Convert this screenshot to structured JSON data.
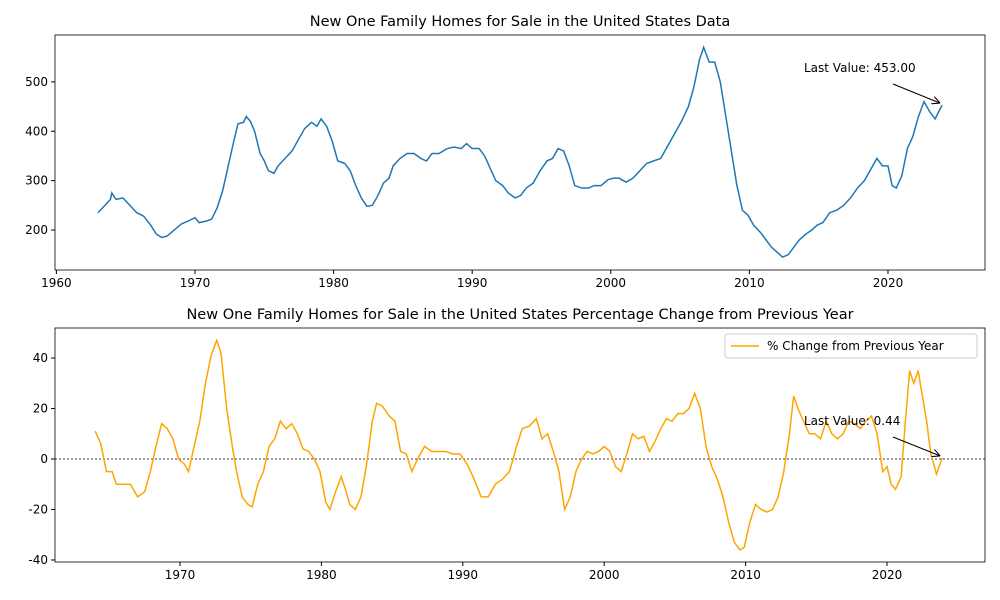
{
  "chart_data": [
    {
      "type": "line",
      "title": "New One Family Homes for Sale in the United States Data",
      "color": "#1f77b4",
      "x": [
        1963.0,
        1963.5,
        1963.9,
        1964.0,
        1964.3,
        1964.8,
        1965.3,
        1965.8,
        1966.3,
        1966.8,
        1967.2,
        1967.6,
        1968.0,
        1968.5,
        1969.0,
        1969.5,
        1970.0,
        1970.3,
        1970.8,
        1971.2,
        1971.6,
        1972.0,
        1972.4,
        1972.8,
        1973.1,
        1973.5,
        1973.7,
        1974.0,
        1974.3,
        1974.7,
        1975.0,
        1975.3,
        1975.7,
        1976.0,
        1976.5,
        1977.0,
        1977.5,
        1977.9,
        1978.4,
        1978.8,
        1979.1,
        1979.5,
        1979.9,
        1980.3,
        1980.8,
        1981.2,
        1981.6,
        1982.0,
        1982.4,
        1982.8,
        1983.2,
        1983.6,
        1984.0,
        1984.3,
        1984.8,
        1985.3,
        1985.8,
        1986.3,
        1986.7,
        1987.1,
        1987.6,
        1988.2,
        1988.7,
        1989.2,
        1989.6,
        1990.0,
        1990.5,
        1990.9,
        1991.3,
        1991.7,
        1992.2,
        1992.6,
        1993.1,
        1993.5,
        1993.9,
        1994.4,
        1994.9,
        1995.4,
        1995.8,
        1996.2,
        1996.6,
        1997.0,
        1997.4,
        1997.9,
        1998.4,
        1998.8,
        1999.3,
        1999.8,
        2000.2,
        2000.6,
        2001.1,
        2001.6,
        2002.1,
        2002.6,
        2003.1,
        2003.6,
        2004.1,
        2004.6,
        2005.1,
        2005.6,
        2006.0,
        2006.4,
        2006.7,
        2007.1,
        2007.5,
        2007.9,
        2008.3,
        2008.7,
        2009.1,
        2009.5,
        2009.9,
        2010.3,
        2010.8,
        2011.2,
        2011.6,
        2012.0,
        2012.4,
        2012.8,
        2013.2,
        2013.6,
        2014.0,
        2014.5,
        2014.9,
        2015.3,
        2015.8,
        2016.3,
        2016.8,
        2017.3,
        2017.8,
        2018.3,
        2018.8,
        2019.2,
        2019.6,
        2020.0,
        2020.3,
        2020.6,
        2021.0,
        2021.4,
        2021.8,
        2022.2,
        2022.6,
        2023.0,
        2023.4,
        2023.9
      ],
      "values": [
        235,
        250,
        262,
        275,
        262,
        265,
        250,
        235,
        228,
        210,
        192,
        185,
        188,
        200,
        212,
        218,
        225,
        215,
        218,
        222,
        245,
        280,
        330,
        380,
        415,
        418,
        430,
        420,
        400,
        355,
        340,
        320,
        315,
        330,
        345,
        360,
        385,
        405,
        418,
        410,
        425,
        410,
        380,
        340,
        335,
        320,
        290,
        265,
        248,
        250,
        270,
        295,
        305,
        330,
        345,
        355,
        355,
        345,
        340,
        355,
        355,
        365,
        368,
        365,
        375,
        365,
        365,
        350,
        325,
        300,
        290,
        275,
        265,
        270,
        285,
        295,
        320,
        340,
        345,
        365,
        360,
        330,
        290,
        285,
        285,
        290,
        290,
        302,
        305,
        305,
        297,
        305,
        320,
        335,
        340,
        345,
        370,
        395,
        420,
        450,
        490,
        545,
        570,
        540,
        540,
        500,
        430,
        360,
        290,
        240,
        230,
        210,
        195,
        180,
        165,
        155,
        145,
        150,
        165,
        180,
        190,
        200,
        210,
        215,
        235,
        240,
        250,
        265,
        285,
        300,
        325,
        345,
        330,
        330,
        290,
        285,
        310,
        365,
        390,
        430,
        460,
        440,
        425,
        453
      ],
      "xlim": [
        1959.9,
        2027.0
      ],
      "ylim": [
        119,
        595
      ],
      "xticks": [
        1960,
        1970,
        1980,
        1990,
        2000,
        2010,
        2020
      ],
      "yticks": [
        200,
        300,
        400,
        500
      ],
      "annotation": "Last Value: 453.00"
    },
    {
      "type": "line",
      "title": "New One Family Homes for Sale in the United States Percentage Change from Previous Year",
      "x": [
        1964.0,
        1964.4,
        1964.8,
        1965.2,
        1965.5,
        1966.0,
        1966.5,
        1967.0,
        1967.5,
        1967.9,
        1968.3,
        1968.7,
        1969.1,
        1969.5,
        1969.9,
        1970.3,
        1970.6,
        1971.0,
        1971.4,
        1971.8,
        1972.2,
        1972.6,
        1972.9,
        1973.3,
        1973.7,
        1974.0,
        1974.4,
        1974.8,
        1975.1,
        1975.5,
        1975.9,
        1976.3,
        1976.7,
        1977.1,
        1977.5,
        1977.9,
        1978.3,
        1978.7,
        1979.1,
        1979.5,
        1979.9,
        1980.3,
        1980.6,
        1981.0,
        1981.4,
        1981.7,
        1982.0,
        1982.4,
        1982.8,
        1983.2,
        1983.6,
        1983.9,
        1984.3,
        1984.8,
        1985.2,
        1985.6,
        1986.0,
        1986.4,
        1986.8,
        1987.3,
        1987.8,
        1988.3,
        1988.8,
        1989.3,
        1989.8,
        1990.3,
        1990.8,
        1991.3,
        1991.8,
        1992.3,
        1992.8,
        1993.3,
        1993.8,
        1994.2,
        1994.7,
        1995.2,
        1995.6,
        1996.0,
        1996.4,
        1996.8,
        1997.2,
        1997.6,
        1998.0,
        1998.4,
        1998.8,
        1999.2,
        1999.6,
        2000.0,
        2000.4,
        2000.8,
        2001.2,
        2001.6,
        2002.0,
        2002.4,
        2002.8,
        2003.2,
        2003.6,
        2004.0,
        2004.4,
        2004.8,
        2005.2,
        2005.6,
        2006.0,
        2006.4,
        2006.8,
        2007.2,
        2007.6,
        2008.0,
        2008.4,
        2008.8,
        2009.2,
        2009.6,
        2009.9,
        2010.3,
        2010.7,
        2011.1,
        2011.5,
        2011.9,
        2012.3,
        2012.7,
        2013.1,
        2013.4,
        2013.7,
        2014.1,
        2014.5,
        2014.9,
        2015.3,
        2015.7,
        2016.1,
        2016.5,
        2016.9,
        2017.3,
        2017.7,
        2018.1,
        2018.5,
        2018.9,
        2019.3,
        2019.7,
        2020.0,
        2020.3,
        2020.6,
        2021.0,
        2021.3,
        2021.6,
        2021.9,
        2022.2,
        2022.5,
        2022.8,
        2023.1,
        2023.5,
        2023.9
      ],
      "series": [
        {
          "name": "% Change from Previous Year",
          "color": "#ffa500",
          "values": [
            11,
            6,
            -5,
            -5,
            -10,
            -10,
            -10,
            -15,
            -13,
            -5,
            5,
            14,
            12,
            8,
            0,
            -2,
            -5,
            5,
            15,
            30,
            41,
            47,
            42,
            20,
            5,
            -5,
            -15,
            -18,
            -19,
            -10,
            -5,
            5,
            8,
            15,
            12,
            14,
            10,
            4,
            3,
            0,
            -5,
            -17,
            -20,
            -13,
            -7,
            -12,
            -18,
            -20,
            -15,
            -2,
            15,
            22,
            21,
            17,
            15,
            3,
            2,
            -5,
            0,
            5,
            3,
            3,
            3,
            2,
            2,
            -2,
            -8,
            -15,
            -15,
            -10,
            -8,
            -5,
            5,
            12,
            13,
            16,
            8,
            10,
            3,
            -5,
            -20,
            -15,
            -5,
            0,
            3,
            2,
            3,
            5,
            3,
            -3,
            -5,
            2,
            10,
            8,
            9,
            3,
            7,
            12,
            16,
            15,
            18,
            18,
            20,
            26,
            20,
            5,
            -3,
            -8,
            -15,
            -25,
            -33,
            -36,
            -35,
            -25,
            -18,
            -20,
            -21,
            -20,
            -15,
            -5,
            10,
            25,
            20,
            15,
            10,
            10,
            8,
            15,
            10,
            8,
            10,
            15,
            14,
            12,
            15,
            17,
            10,
            -5,
            -3,
            -10,
            -12,
            -7,
            15,
            35,
            30,
            35,
            25,
            15,
            2,
            -6,
            0.44
          ]
        }
      ],
      "xlim": [
        1961.16,
        2026.93
      ],
      "ylim": [
        -40.8,
        51.9
      ],
      "xticks": [
        1970,
        1980,
        1990,
        2000,
        2010,
        2020
      ],
      "yticks": [
        -40,
        -20,
        0,
        20,
        40
      ],
      "hline": 0,
      "legend": "upper right",
      "annotation": "Last Value: 0.44"
    }
  ]
}
